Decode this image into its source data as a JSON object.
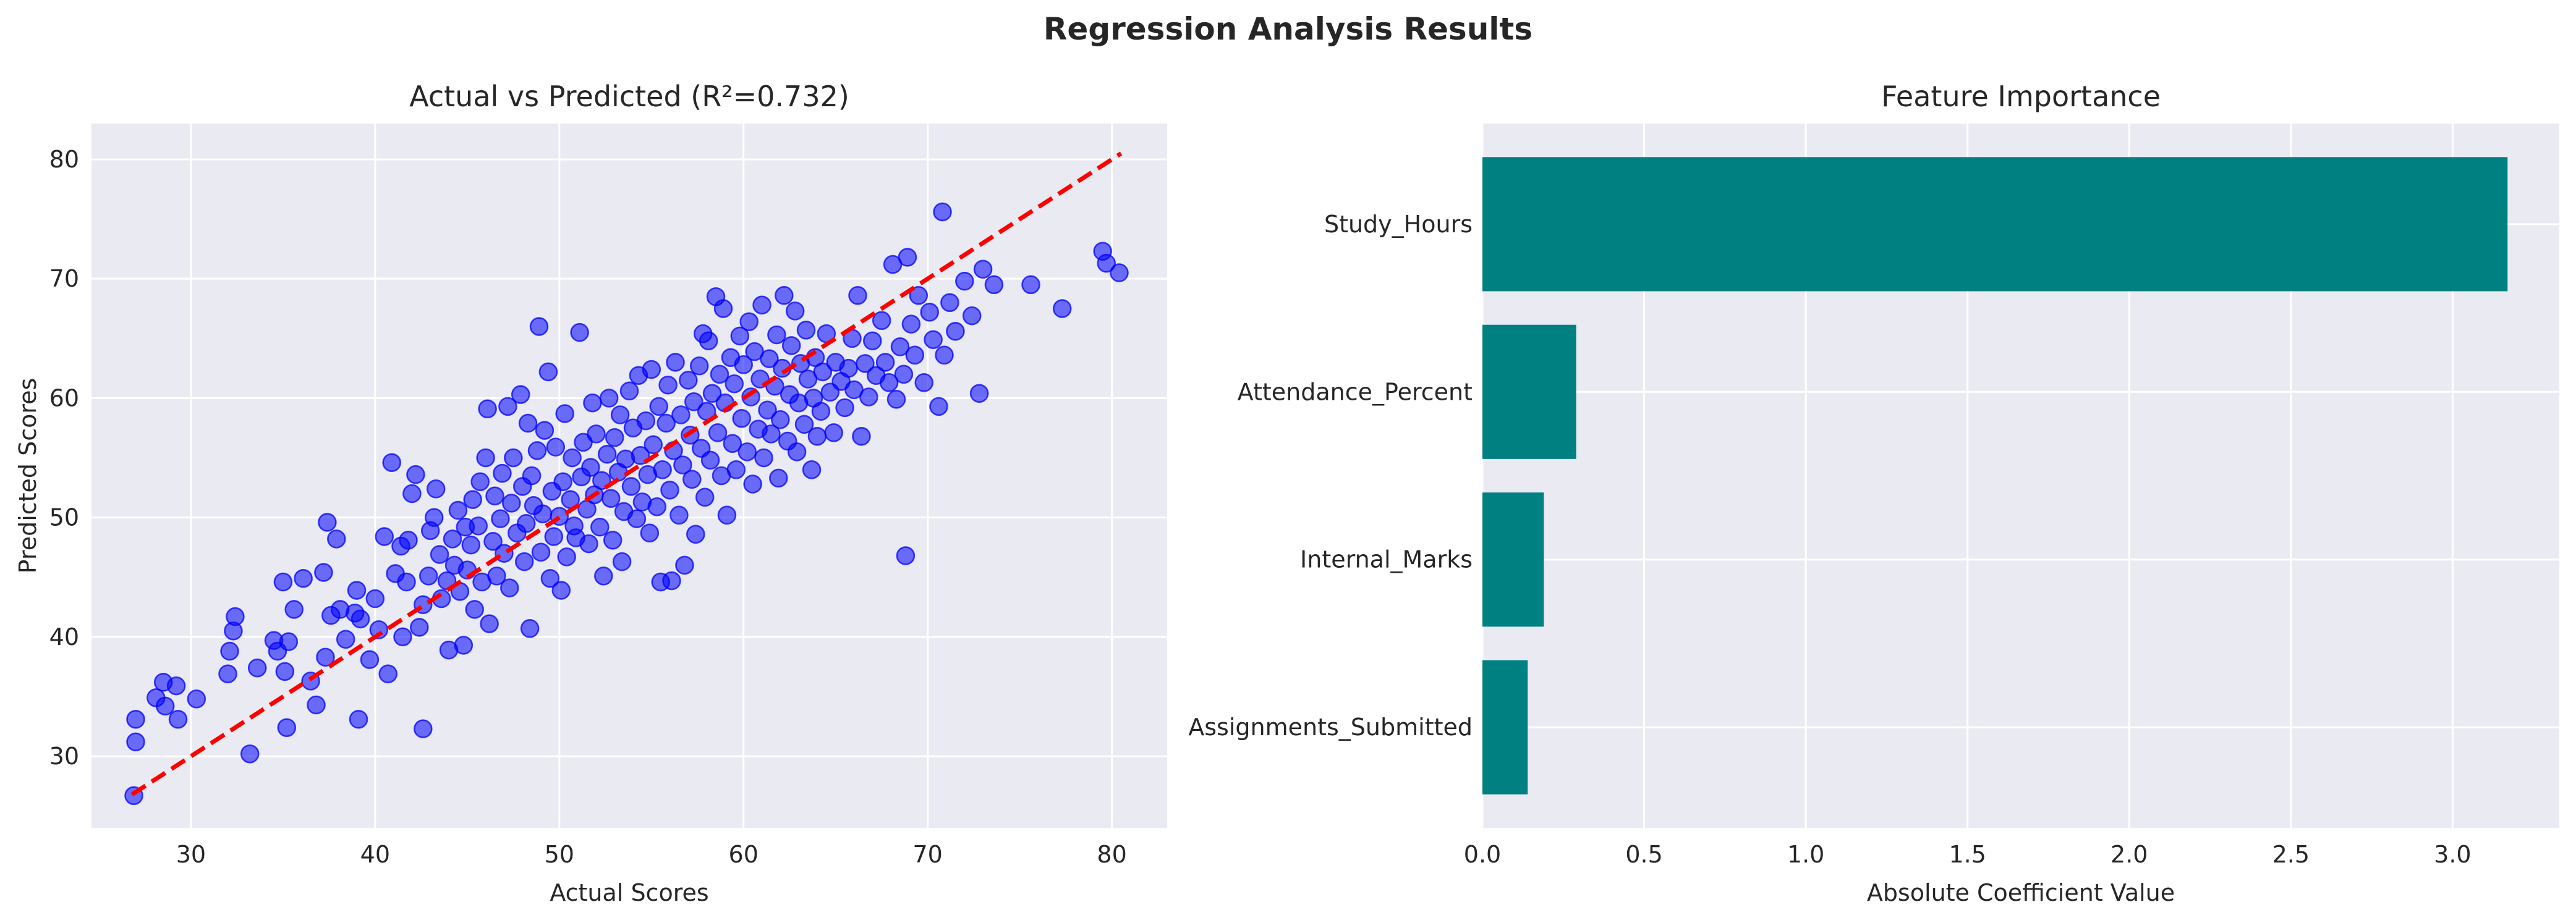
{
  "figure": {
    "suptitle": "Regression Analysis Results"
  },
  "colors": {
    "axes_bg": "#eaeaf2",
    "grid": "#ffffff",
    "scatter": "#0000ff",
    "ideal_line": "#ff0000",
    "bar": "#008080",
    "text": "#262626"
  },
  "chart_data": [
    {
      "type": "scatter",
      "title": "Actual vs Predicted (R²=0.732)",
      "xlabel": "Actual Scores",
      "ylabel": "Predicted Scores",
      "xlim": [
        24.6,
        83.0
      ],
      "ylim": [
        24.0,
        83.0
      ],
      "xticks": [
        30,
        40,
        50,
        60,
        70,
        80
      ],
      "yticks": [
        30,
        40,
        50,
        60,
        70,
        80
      ],
      "grid": true,
      "reference_line": {
        "style": "dashed",
        "x": [
          26.8,
          80.5
        ],
        "y": [
          26.8,
          80.5
        ]
      },
      "points": [
        [
          26.9,
          26.7
        ],
        [
          27.0,
          31.2
        ],
        [
          27.0,
          33.1
        ],
        [
          28.1,
          34.9
        ],
        [
          28.5,
          36.2
        ],
        [
          28.6,
          34.2
        ],
        [
          29.2,
          35.9
        ],
        [
          29.3,
          33.1
        ],
        [
          30.3,
          34.8
        ],
        [
          32.0,
          36.9
        ],
        [
          32.1,
          38.8
        ],
        [
          32.3,
          40.5
        ],
        [
          32.4,
          41.7
        ],
        [
          33.2,
          30.2
        ],
        [
          33.6,
          37.4
        ],
        [
          34.5,
          39.7
        ],
        [
          34.7,
          38.8
        ],
        [
          35.0,
          44.6
        ],
        [
          35.1,
          37.1
        ],
        [
          35.2,
          32.4
        ],
        [
          35.3,
          39.6
        ],
        [
          35.6,
          42.3
        ],
        [
          36.1,
          44.9
        ],
        [
          36.5,
          36.3
        ],
        [
          36.8,
          34.3
        ],
        [
          37.2,
          45.4
        ],
        [
          37.3,
          38.3
        ],
        [
          37.6,
          41.8
        ],
        [
          37.4,
          49.6
        ],
        [
          37.9,
          48.2
        ],
        [
          38.1,
          42.3
        ],
        [
          38.4,
          39.8
        ],
        [
          38.9,
          42.0
        ],
        [
          39.0,
          43.9
        ],
        [
          39.1,
          33.1
        ],
        [
          39.2,
          41.5
        ],
        [
          39.7,
          38.1
        ],
        [
          40.0,
          43.2
        ],
        [
          40.2,
          40.6
        ],
        [
          40.5,
          48.4
        ],
        [
          40.7,
          36.9
        ],
        [
          40.9,
          54.6
        ],
        [
          41.1,
          45.3
        ],
        [
          41.4,
          47.6
        ],
        [
          41.5,
          40.0
        ],
        [
          41.7,
          44.6
        ],
        [
          41.8,
          48.1
        ],
        [
          42.0,
          52.0
        ],
        [
          42.2,
          53.6
        ],
        [
          42.4,
          40.8
        ],
        [
          42.6,
          32.3
        ],
        [
          42.6,
          42.7
        ],
        [
          42.9,
          45.1
        ],
        [
          43.0,
          48.9
        ],
        [
          43.2,
          50.0
        ],
        [
          43.3,
          52.4
        ],
        [
          43.5,
          46.9
        ],
        [
          43.6,
          43.2
        ],
        [
          43.9,
          44.7
        ],
        [
          44.0,
          38.9
        ],
        [
          44.2,
          48.2
        ],
        [
          44.3,
          46.0
        ],
        [
          44.5,
          50.6
        ],
        [
          44.6,
          43.8
        ],
        [
          44.8,
          39.3
        ],
        [
          44.9,
          49.2
        ],
        [
          45.0,
          45.6
        ],
        [
          45.2,
          47.7
        ],
        [
          45.3,
          51.5
        ],
        [
          45.4,
          42.3
        ],
        [
          45.6,
          49.3
        ],
        [
          45.7,
          53.0
        ],
        [
          45.8,
          44.6
        ],
        [
          46.0,
          55.0
        ],
        [
          46.1,
          59.1
        ],
        [
          46.2,
          41.1
        ],
        [
          46.4,
          48.0
        ],
        [
          46.5,
          51.8
        ],
        [
          46.6,
          45.1
        ],
        [
          46.8,
          49.9
        ],
        [
          46.9,
          53.7
        ],
        [
          47.0,
          47.0
        ],
        [
          47.2,
          59.3
        ],
        [
          47.3,
          44.1
        ],
        [
          47.4,
          51.2
        ],
        [
          47.5,
          55.0
        ],
        [
          47.7,
          48.7
        ],
        [
          47.9,
          60.3
        ],
        [
          48.0,
          52.6
        ],
        [
          48.1,
          46.3
        ],
        [
          48.2,
          49.5
        ],
        [
          48.3,
          57.9
        ],
        [
          48.4,
          40.7
        ],
        [
          48.5,
          53.5
        ],
        [
          48.6,
          51.0
        ],
        [
          48.8,
          55.6
        ],
        [
          48.9,
          66.0
        ],
        [
          49.0,
          47.1
        ],
        [
          49.1,
          50.3
        ],
        [
          49.2,
          57.3
        ],
        [
          49.4,
          62.2
        ],
        [
          49.5,
          44.9
        ],
        [
          49.6,
          52.2
        ],
        [
          49.7,
          48.4
        ],
        [
          49.8,
          55.9
        ],
        [
          50.0,
          50.1
        ],
        [
          50.1,
          43.9
        ],
        [
          50.2,
          53.0
        ],
        [
          50.3,
          58.7
        ],
        [
          50.4,
          46.7
        ],
        [
          50.6,
          51.5
        ],
        [
          50.7,
          55.0
        ],
        [
          50.8,
          49.3
        ],
        [
          50.9,
          48.3
        ],
        [
          51.1,
          65.5
        ],
        [
          51.2,
          53.4
        ],
        [
          51.3,
          56.3
        ],
        [
          51.5,
          50.7
        ],
        [
          51.6,
          47.8
        ],
        [
          51.7,
          54.2
        ],
        [
          51.8,
          59.6
        ],
        [
          51.9,
          51.9
        ],
        [
          52.0,
          57.0
        ],
        [
          52.2,
          49.2
        ],
        [
          52.3,
          53.1
        ],
        [
          52.4,
          45.1
        ],
        [
          52.6,
          55.3
        ],
        [
          52.7,
          60.0
        ],
        [
          52.8,
          51.6
        ],
        [
          52.9,
          48.1
        ],
        [
          53.0,
          56.7
        ],
        [
          53.2,
          53.8
        ],
        [
          53.3,
          58.6
        ],
        [
          53.4,
          46.3
        ],
        [
          53.5,
          50.5
        ],
        [
          53.6,
          54.9
        ],
        [
          53.8,
          60.6
        ],
        [
          53.9,
          52.6
        ],
        [
          54.0,
          57.5
        ],
        [
          54.2,
          49.9
        ],
        [
          54.3,
          61.9
        ],
        [
          54.4,
          55.2
        ],
        [
          54.5,
          51.3
        ],
        [
          54.7,
          58.1
        ],
        [
          54.8,
          53.6
        ],
        [
          54.9,
          48.7
        ],
        [
          55.0,
          62.4
        ],
        [
          55.1,
          56.1
        ],
        [
          55.3,
          50.9
        ],
        [
          55.4,
          59.3
        ],
        [
          55.5,
          44.6
        ],
        [
          55.6,
          54.0
        ],
        [
          55.8,
          57.9
        ],
        [
          55.9,
          61.1
        ],
        [
          56.0,
          52.3
        ],
        [
          56.1,
          44.7
        ],
        [
          56.2,
          55.6
        ],
        [
          56.3,
          63.0
        ],
        [
          56.5,
          50.2
        ],
        [
          56.6,
          58.6
        ],
        [
          56.7,
          54.4
        ],
        [
          56.8,
          46.0
        ],
        [
          57.0,
          61.5
        ],
        [
          57.1,
          56.9
        ],
        [
          57.2,
          53.2
        ],
        [
          57.3,
          59.7
        ],
        [
          57.4,
          48.6
        ],
        [
          57.6,
          62.7
        ],
        [
          57.7,
          55.8
        ],
        [
          57.8,
          65.4
        ],
        [
          57.9,
          51.7
        ],
        [
          58.0,
          58.9
        ],
        [
          58.1,
          64.8
        ],
        [
          58.2,
          54.8
        ],
        [
          58.3,
          60.4
        ],
        [
          58.5,
          68.5
        ],
        [
          58.6,
          57.1
        ],
        [
          58.7,
          62.0
        ],
        [
          58.8,
          53.5
        ],
        [
          58.9,
          67.5
        ],
        [
          59.0,
          59.6
        ],
        [
          59.1,
          50.2
        ],
        [
          59.3,
          63.4
        ],
        [
          59.4,
          56.2
        ],
        [
          59.5,
          61.2
        ],
        [
          59.6,
          54.0
        ],
        [
          59.8,
          65.2
        ],
        [
          59.9,
          58.3
        ],
        [
          60.0,
          62.8
        ],
        [
          60.2,
          55.5
        ],
        [
          60.3,
          66.4
        ],
        [
          60.4,
          60.1
        ],
        [
          60.5,
          52.8
        ],
        [
          60.6,
          63.9
        ],
        [
          60.8,
          57.4
        ],
        [
          60.9,
          61.6
        ],
        [
          61.0,
          67.8
        ],
        [
          61.1,
          55.0
        ],
        [
          61.3,
          59.0
        ],
        [
          61.4,
          63.3
        ],
        [
          61.5,
          57.0
        ],
        [
          61.7,
          61.0
        ],
        [
          61.8,
          65.3
        ],
        [
          61.9,
          53.3
        ],
        [
          62.0,
          58.2
        ],
        [
          62.1,
          62.5
        ],
        [
          62.2,
          68.6
        ],
        [
          62.4,
          56.4
        ],
        [
          62.5,
          60.3
        ],
        [
          62.6,
          64.4
        ],
        [
          62.8,
          67.3
        ],
        [
          62.9,
          55.5
        ],
        [
          63.0,
          59.6
        ],
        [
          63.1,
          62.9
        ],
        [
          63.3,
          57.8
        ],
        [
          63.4,
          65.7
        ],
        [
          63.5,
          61.6
        ],
        [
          63.7,
          54.0
        ],
        [
          63.8,
          60.0
        ],
        [
          63.9,
          63.4
        ],
        [
          64.0,
          56.8
        ],
        [
          64.2,
          58.9
        ],
        [
          64.3,
          62.2
        ],
        [
          64.5,
          65.4
        ],
        [
          64.7,
          60.5
        ],
        [
          64.9,
          57.1
        ],
        [
          65.0,
          63.0
        ],
        [
          65.3,
          61.4
        ],
        [
          65.5,
          59.2
        ],
        [
          65.7,
          62.5
        ],
        [
          65.9,
          65.0
        ],
        [
          66.0,
          60.7
        ],
        [
          66.2,
          68.6
        ],
        [
          66.4,
          56.8
        ],
        [
          66.6,
          62.9
        ],
        [
          66.8,
          60.1
        ],
        [
          67.0,
          64.8
        ],
        [
          67.2,
          61.9
        ],
        [
          67.5,
          66.5
        ],
        [
          67.7,
          63.0
        ],
        [
          67.9,
          61.3
        ],
        [
          68.1,
          71.2
        ],
        [
          68.3,
          59.9
        ],
        [
          68.5,
          64.3
        ],
        [
          68.7,
          62.0
        ],
        [
          68.8,
          46.8
        ],
        [
          68.9,
          71.8
        ],
        [
          69.1,
          66.2
        ],
        [
          69.3,
          63.6
        ],
        [
          69.5,
          68.6
        ],
        [
          69.8,
          61.3
        ],
        [
          70.1,
          67.2
        ],
        [
          70.3,
          64.9
        ],
        [
          70.6,
          59.3
        ],
        [
          70.8,
          75.6
        ],
        [
          70.9,
          63.6
        ],
        [
          71.2,
          68.0
        ],
        [
          71.5,
          65.6
        ],
        [
          72.0,
          69.8
        ],
        [
          72.4,
          66.9
        ],
        [
          72.8,
          60.4
        ],
        [
          73.0,
          70.8
        ],
        [
          73.6,
          69.5
        ],
        [
          75.6,
          69.5
        ],
        [
          77.3,
          67.5
        ],
        [
          79.5,
          72.3
        ],
        [
          79.7,
          71.3
        ],
        [
          80.4,
          70.5
        ]
      ]
    },
    {
      "type": "bar",
      "orientation": "horizontal",
      "title": "Feature Importance",
      "xlabel": "Absolute Coefficient Value",
      "ylabel": "",
      "xlim": [
        0,
        3.33
      ],
      "xticks": [
        "0.0",
        "0.5",
        "1.0",
        "1.5",
        "2.0",
        "2.5",
        "3.0"
      ],
      "grid": true,
      "categories": [
        "Study_Hours",
        "Attendance_Percent",
        "Internal_Marks",
        "Assignments_Submitted"
      ],
      "values": [
        3.17,
        0.29,
        0.19,
        0.14
      ]
    }
  ]
}
